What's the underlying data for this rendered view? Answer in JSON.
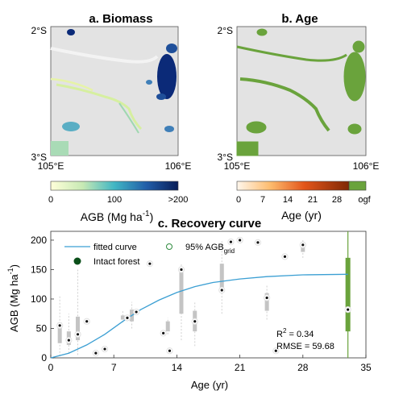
{
  "colors": {
    "map_background": "#e3e3e3",
    "age_green": "#6aa33c",
    "biomass_dark": "#0b2a78",
    "fitted_curve": "#3b9fd3",
    "intact_forest": "#0b4f1a",
    "box_gray": "#c4c4c4"
  },
  "panel_a": {
    "title": "a. Biomass",
    "lat_top": "2°S",
    "lat_bottom": "3°S",
    "lon_left": "105°E",
    "lon_right": "106°E",
    "colorbar_ticks": [
      "0",
      "100",
      ">200"
    ],
    "colorbar_label": "AGB (Mg ha",
    "colorbar_label_sup": "-1",
    "colorbar_label_end": ")"
  },
  "panel_b": {
    "title": "b. Age",
    "lat_top": "2°S",
    "lat_bottom": "3°S",
    "lon_left": "105°E",
    "lon_right": "106°E",
    "colorbar_ticks": [
      "0",
      "7",
      "14",
      "21",
      "28",
      "ogf"
    ],
    "colorbar_label": "Age (yr)"
  },
  "panel_c": {
    "title": "c. Recovery curve",
    "legend_fitted": "fitted curve",
    "legend_intact": "Intact forest",
    "legend_ci": "95% AGB",
    "legend_ci_sub": "grid",
    "stat_r2_main": "R",
    "stat_r2_sup": "2",
    "stat_r2_val": " = 0.34",
    "stat_rmse": "RMSE = 59.68"
  },
  "chart_data": {
    "type": "box",
    "xlabel": "Age (yr)",
    "ylabel_main": "AGB (Mg ha",
    "ylabel_sup": "-1",
    "ylabel_end": ")",
    "xlim": [
      0,
      35
    ],
    "ylim": [
      0,
      215
    ],
    "xticks": [
      0,
      7,
      14,
      21,
      28,
      35
    ],
    "yticks": [
      0,
      50,
      100,
      150,
      200
    ],
    "fitted_curve": [
      [
        0,
        0
      ],
      [
        2,
        8
      ],
      [
        4,
        22
      ],
      [
        6,
        40
      ],
      [
        8,
        62
      ],
      [
        10,
        82
      ],
      [
        12,
        98
      ],
      [
        14,
        111
      ],
      [
        16,
        121
      ],
      [
        18,
        128
      ],
      [
        21,
        134
      ],
      [
        24,
        138
      ],
      [
        28,
        141
      ],
      [
        33,
        142
      ]
    ],
    "boxes": [
      {
        "x": 1,
        "q1": 25,
        "q3": 60,
        "whisker_low": 3,
        "whisker_high": 105
      },
      {
        "x": 2,
        "q1": 22,
        "q3": 45,
        "whisker_low": 8,
        "whisker_high": 75
      },
      {
        "x": 3,
        "q1": 30,
        "q3": 70,
        "whisker_low": 5,
        "whisker_high": 150
      },
      {
        "x": 8,
        "q1": 65,
        "q3": 72,
        "whisker_low": 60,
        "whisker_high": 80
      },
      {
        "x": 9,
        "q1": 62,
        "q3": 82,
        "whisker_low": 50,
        "whisker_high": 95
      },
      {
        "x": 13,
        "q1": 45,
        "q3": 62,
        "whisker_low": 40,
        "whisker_high": 68
      },
      {
        "x": 14.5,
        "q1": 75,
        "q3": 145,
        "whisker_low": 30,
        "whisker_high": 160
      },
      {
        "x": 16,
        "q1": 45,
        "q3": 80,
        "whisker_low": 20,
        "whisker_high": 95
      },
      {
        "x": 19,
        "q1": 115,
        "q3": 160,
        "whisker_low": 75,
        "whisker_high": 200
      },
      {
        "x": 24,
        "q1": 80,
        "q3": 110,
        "whisker_low": 65,
        "whisker_high": 125
      },
      {
        "x": 28,
        "q1": 180,
        "q3": 195,
        "whisker_low": 170,
        "whisker_high": 200
      }
    ],
    "grid_means": [
      {
        "x": 1,
        "y": 55
      },
      {
        "x": 2,
        "y": 30
      },
      {
        "x": 3,
        "y": 40
      },
      {
        "x": 4,
        "y": 62
      },
      {
        "x": 5,
        "y": 8
      },
      {
        "x": 6,
        "y": 15
      },
      {
        "x": 8.5,
        "y": 68
      },
      {
        "x": 9.5,
        "y": 78
      },
      {
        "x": 11,
        "y": 160
      },
      {
        "x": 12.5,
        "y": 42
      },
      {
        "x": 13.2,
        "y": 12
      },
      {
        "x": 14.5,
        "y": 150
      },
      {
        "x": 16,
        "y": 62
      },
      {
        "x": 19,
        "y": 115
      },
      {
        "x": 20,
        "y": 197
      },
      {
        "x": 21,
        "y": 200
      },
      {
        "x": 23,
        "y": 196
      },
      {
        "x": 24,
        "y": 102
      },
      {
        "x": 25,
        "y": 12
      },
      {
        "x": 26,
        "y": 172
      },
      {
        "x": 28,
        "y": 192
      }
    ],
    "intact_forest": {
      "x": 33,
      "q1": 45,
      "q3": 170,
      "whisker_low": 0,
      "whisker_high": 215,
      "mean": 82
    }
  }
}
